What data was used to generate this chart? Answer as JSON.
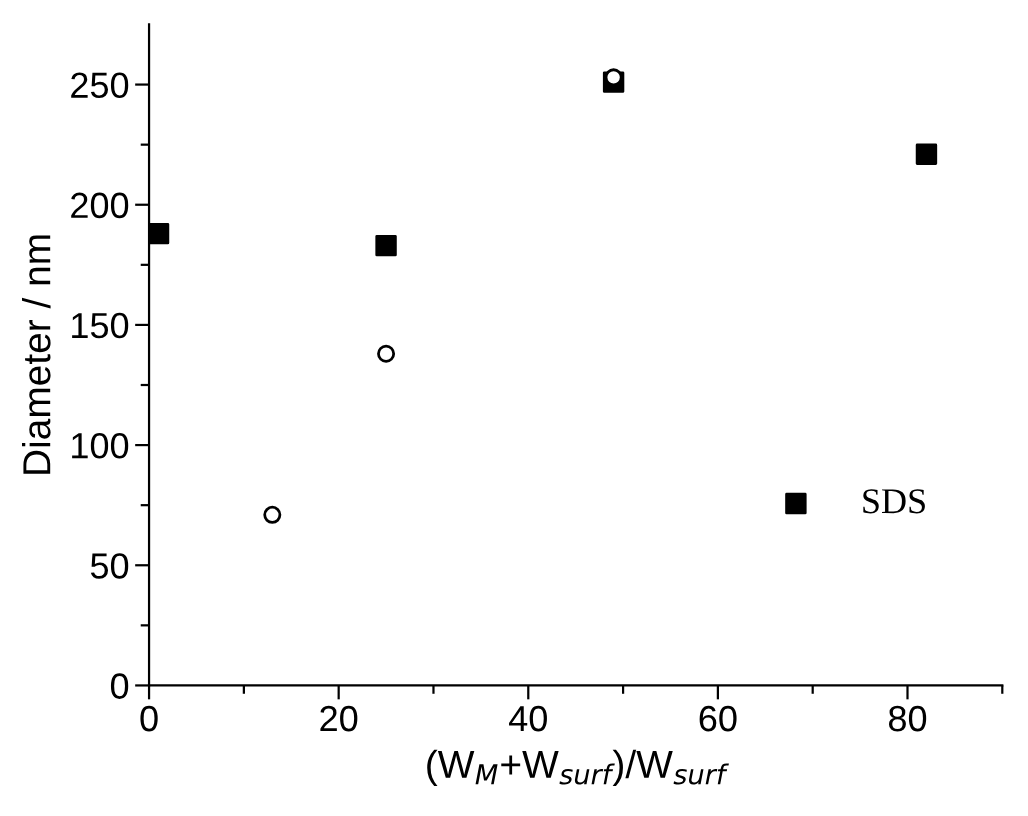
{
  "chart_data": {
    "type": "scatter",
    "xlabel": "(W$_{M}$+W$_{surf}$)/W$_{surf}$",
    "ylabel": "Diameter / nm",
    "series": [
      {
        "name": "SDS",
        "color": "#000000",
        "marker": "square",
        "x": [
          1,
          25,
          49,
          82
        ],
        "values": [
          188,
          183,
          251,
          221
        ]
      },
      {
        "color": "#000000",
        "marker": "circle",
        "x": [
          13,
          25,
          49
        ],
        "values": [
          71,
          138,
          253
        ]
      }
    ],
    "xlim": [
      0,
      90
    ],
    "ylim": [
      0,
      275
    ],
    "xticks": [
      0,
      {
        "value": 10,
        "label": null
      },
      20,
      {
        "value": 30,
        "label": null
      },
      40,
      {
        "value": 50,
        "label": null
      },
      60,
      {
        "value": 70,
        "label": null
      },
      80,
      {
        "value": 90,
        "label": null
      }
    ],
    "yticks": [
      0,
      {
        "value": 25,
        "label": null
      },
      50,
      {
        "value": 75,
        "label": null
      },
      100,
      {
        "value": 125,
        "label": null
      },
      150,
      {
        "value": 175,
        "label": null
      },
      200,
      {
        "value": 225,
        "label": null
      },
      250
    ],
    "grid": false,
    "legend": "bottom right"
  }
}
